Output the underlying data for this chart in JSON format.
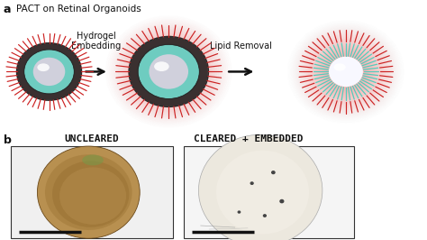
{
  "panel_a_title": "PACT on Retinal Organoids",
  "panel_label_a": "a",
  "panel_label_b": "b",
  "step1_label": "Hydrogel\nEmbedding",
  "step2_label": "Lipid Removal",
  "photo1_label": "UNCLEARED",
  "photo2_label": "CLEARED + EMBEDDED",
  "bg_color": "#ffffff",
  "organoid_spike_color": "#cc2222",
  "organoid_dark_ring_color": "#3a3a3a",
  "organoid_teal_color": "#55ccbb",
  "organoid_core_gray": "#c8c8d0",
  "organoid_core_white": "#f5f5ff",
  "hydrogel_glow_color": "#f5aaaa",
  "arrow_color": "#111111",
  "text_color": "#111111",
  "label_fontsize": 8,
  "title_fontsize": 7.5,
  "scalebar_color": "#111111"
}
